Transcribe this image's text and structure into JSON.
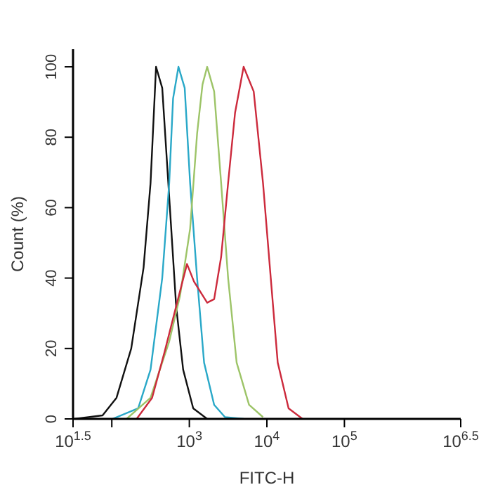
{
  "chart_data": {
    "type": "line",
    "xlabel": "FITC-H",
    "ylabel": "Count (%)",
    "log": "x",
    "xlim": [
      31.6228,
      3162278
    ],
    "xticks": [
      {
        "value": 31.6228,
        "label": "10$^{1.5}$"
      },
      {
        "value": 100,
        "label": null
      },
      {
        "value": 1000,
        "label": "10$^{3}$"
      },
      {
        "value": 10000,
        "label": "10$^{4}$"
      },
      {
        "value": 100000,
        "label": "10$^{5}$"
      },
      {
        "value": 3162278,
        "label": "10$^{6.5}$"
      }
    ],
    "ylim": [
      0,
      105
    ],
    "yticks": [
      0,
      20,
      40,
      60,
      80,
      100
    ],
    "marker": "none",
    "line_style": "solid",
    "series": [
      {
        "color": "#111111",
        "x": [
          33,
          76,
          115,
          178,
          257,
          316,
          372,
          447,
          550,
          676,
          832,
          1122,
          1698
        ],
        "values": [
          0,
          1,
          6,
          20,
          43,
          67,
          100,
          94,
          63,
          32,
          14,
          3,
          0
        ]
      },
      {
        "color": "#29a8c8",
        "x": [
          102,
          219,
          316,
          447,
          550,
          617,
          724,
          871,
          1023,
          1259,
          1549,
          2089,
          2884,
          5012
        ],
        "values": [
          0,
          3,
          14,
          40,
          67,
          91,
          100,
          94,
          67,
          40,
          16,
          4,
          0.5,
          0
        ]
      },
      {
        "color": "#9dc468",
        "x": [
          155,
          316,
          550,
          759,
          1023,
          1259,
          1479,
          1698,
          2089,
          2570,
          3162,
          4074,
          5888,
          8913
        ],
        "values": [
          0,
          6,
          22,
          35,
          54,
          81,
          95,
          100,
          93,
          67,
          40,
          16,
          4,
          0.5
        ]
      },
      {
        "color": "#cc2a3c",
        "x": [
          209,
          331,
          479,
          676,
          933,
          1148,
          1698,
          2089,
          2570,
          3162,
          3890,
          5012,
          6761,
          8913,
          11220,
          13800,
          19050,
          28840
        ],
        "values": [
          0,
          6,
          19,
          32,
          44,
          39,
          33,
          34,
          46,
          67,
          87,
          100,
          93,
          67,
          40,
          16,
          3,
          0
        ]
      }
    ]
  }
}
